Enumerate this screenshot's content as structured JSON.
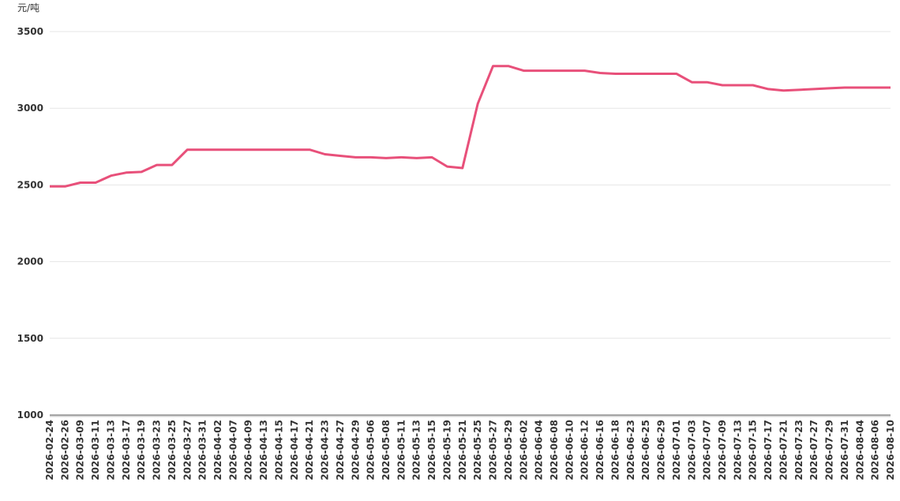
{
  "chart_data": {
    "type": "line",
    "y_unit": "元/吨",
    "categories": [
      "2026-02-24",
      "2026-02-26",
      "2026-03-09",
      "2026-03-11",
      "2026-03-13",
      "2026-03-17",
      "2026-03-19",
      "2026-03-23",
      "2026-03-25",
      "2026-03-27",
      "2026-03-31",
      "2026-04-02",
      "2026-04-07",
      "2026-04-09",
      "2026-04-13",
      "2026-04-15",
      "2026-04-17",
      "2026-04-21",
      "2026-04-23",
      "2026-04-27",
      "2026-04-29",
      "2026-05-06",
      "2026-05-08",
      "2026-05-11",
      "2026-05-13",
      "2026-05-15",
      "2026-05-19",
      "2026-05-21",
      "2026-05-25",
      "2026-05-27",
      "2026-05-29",
      "2026-06-02",
      "2026-06-04",
      "2026-06-08",
      "2026-06-10",
      "2026-06-12",
      "2026-06-16",
      "2026-06-18",
      "2026-06-23",
      "2026-06-25",
      "2026-06-29",
      "2026-07-01",
      "2026-07-03",
      "2026-07-07",
      "2026-07-09",
      "2026-07-13",
      "2026-07-15",
      "2026-07-17",
      "2026-07-21",
      "2026-07-23",
      "2026-07-27",
      "2026-07-29",
      "2026-07-31",
      "2026-08-04",
      "2026-08-06",
      "2026-08-10"
    ],
    "values": [
      2490,
      2490,
      2515,
      2515,
      2560,
      2580,
      2585,
      2630,
      2630,
      2730,
      2730,
      2730,
      2730,
      2730,
      2730,
      2730,
      2730,
      2730,
      2700,
      2690,
      2680,
      2680,
      2675,
      2680,
      2675,
      2680,
      2620,
      2610,
      3030,
      3275,
      3275,
      3245,
      3245,
      3245,
      3245,
      3245,
      3230,
      3225,
      3225,
      3225,
      3225,
      3225,
      3170,
      3170,
      3150,
      3150,
      3150,
      3125,
      3115,
      3120,
      3125,
      3130,
      3135,
      3135,
      3135,
      3135
    ],
    "color": "#e8507a",
    "ylim": [
      1000,
      3500
    ],
    "yticks": [
      1000,
      1500,
      2000,
      2500,
      3000,
      3500
    ],
    "grid": true
  }
}
